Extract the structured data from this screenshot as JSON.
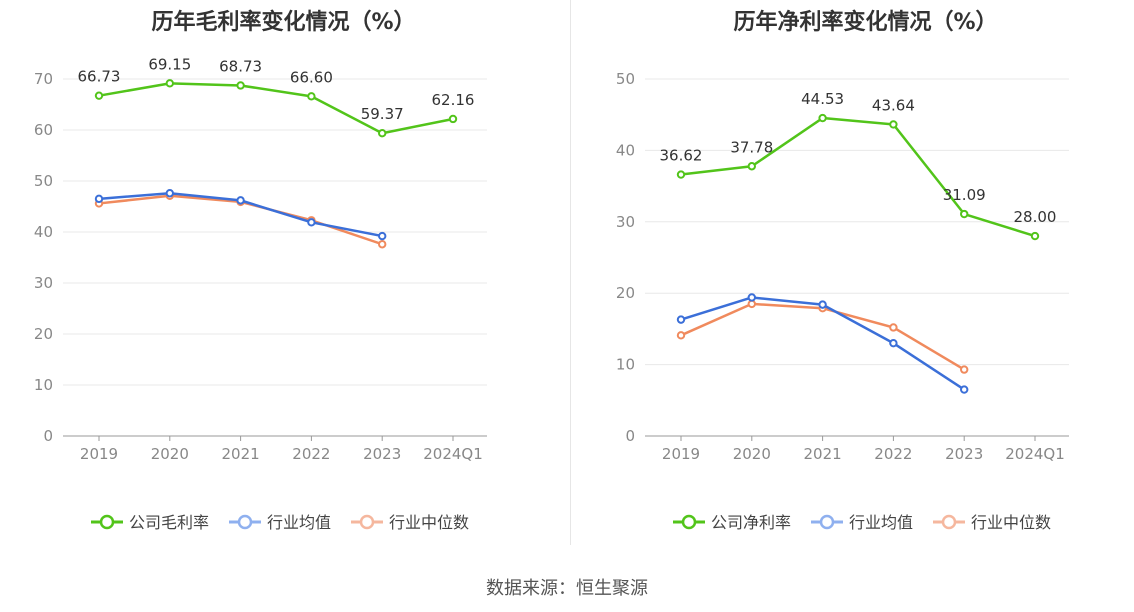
{
  "charts": [
    {
      "title": "历年毛利率变化情况（%）",
      "chart_data": {
        "type": "line",
        "title": "历年毛利率变化情况（%）",
        "categories": [
          "2019",
          "2020",
          "2021",
          "2022",
          "2023",
          "2024Q1"
        ],
        "ylim": [
          0,
          70
        ],
        "yticks": [
          0,
          10,
          20,
          30,
          40,
          50,
          60,
          70
        ],
        "grid": true,
        "legend_position": "bottom",
        "series": [
          {
            "name": "公司毛利率",
            "color": "#52c41a",
            "labeled": true,
            "values": [
              66.73,
              69.15,
              68.73,
              66.6,
              59.37,
              62.16
            ],
            "labels": [
              "66.73",
              "69.15",
              "68.73",
              "66.60",
              "59.37",
              "62.16"
            ]
          },
          {
            "name": "行业均值",
            "color": "#3b6fd8",
            "labeled": false,
            "values": [
              46.5,
              47.6,
              46.2,
              41.9,
              39.2,
              null
            ]
          },
          {
            "name": "行业中位数",
            "color": "#f08a5d",
            "labeled": false,
            "values": [
              45.6,
              47.1,
              45.9,
              42.3,
              37.6,
              null
            ]
          }
        ]
      }
    },
    {
      "title": "历年净利率变化情况（%）",
      "chart_data": {
        "type": "line",
        "title": "历年净利率变化情况（%）",
        "categories": [
          "2019",
          "2020",
          "2021",
          "2022",
          "2023",
          "2024Q1"
        ],
        "ylim": [
          0,
          50
        ],
        "yticks": [
          0,
          10,
          20,
          30,
          40,
          50
        ],
        "grid": true,
        "legend_position": "bottom",
        "series": [
          {
            "name": "公司净利率",
            "color": "#52c41a",
            "labeled": true,
            "values": [
              36.62,
              37.78,
              44.53,
              43.64,
              31.09,
              28.0
            ],
            "labels": [
              "36.62",
              "37.78",
              "44.53",
              "43.64",
              "31.09",
              "28.00"
            ]
          },
          {
            "name": "行业均值",
            "color": "#3b6fd8",
            "labeled": false,
            "values": [
              16.3,
              19.4,
              18.4,
              13.0,
              6.5,
              null
            ]
          },
          {
            "name": "行业中位数",
            "color": "#f08a5d",
            "labeled": false,
            "values": [
              14.1,
              18.5,
              17.9,
              15.2,
              9.3,
              null
            ]
          }
        ]
      }
    }
  ],
  "source_text": "数据来源：恒生聚源"
}
